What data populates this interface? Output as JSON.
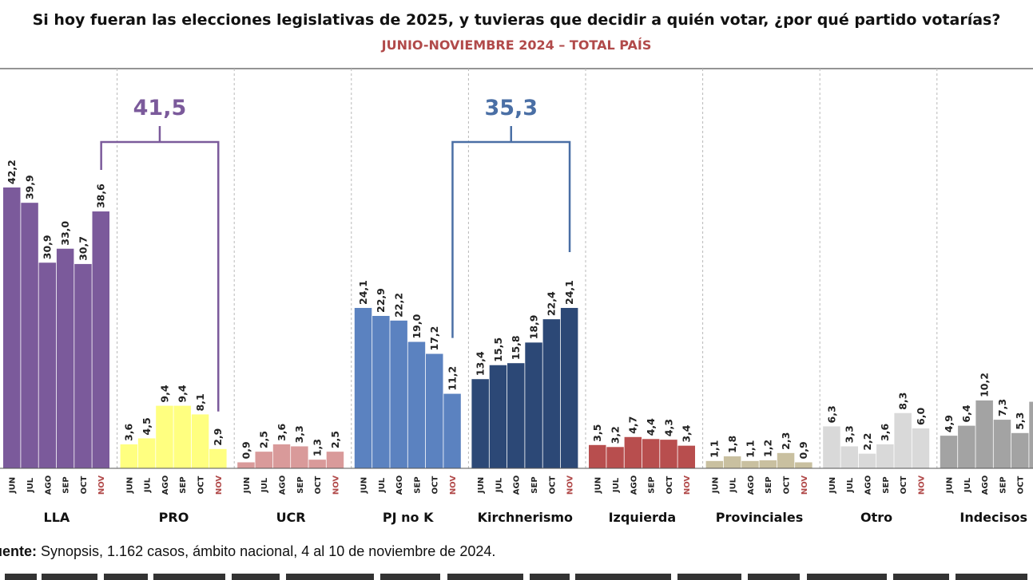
{
  "chart_data": {
    "type": "bar",
    "title": "Si hoy fueran las elecciones legislativas de 2025, y tuvieras que decidir a quién votar, ¿por qué partido votarías?",
    "subtitle": "JUNIO-NOVIEMBRE 2024 – TOTAL PAÍS",
    "months": [
      "JUN",
      "JUL",
      "AGO",
      "SEP",
      "OCT",
      "NOV"
    ],
    "ylim": [
      0,
      45
    ],
    "groups": [
      {
        "name": "LLA",
        "color": "#7b5a9b",
        "values": [
          42.2,
          39.9,
          30.9,
          33.0,
          30.7,
          38.6
        ],
        "labels": [
          "42,2",
          "39,9",
          "30,9",
          "33,0",
          "30,7",
          "38,6"
        ]
      },
      {
        "name": "PRO",
        "color": "#ffff80",
        "values": [
          3.6,
          4.5,
          9.4,
          9.4,
          8.1,
          2.9
        ],
        "labels": [
          "3,6",
          "4,5",
          "9,4",
          "9,4",
          "8,1",
          "2,9"
        ]
      },
      {
        "name": "UCR",
        "color": "#d99a9a",
        "values": [
          0.9,
          2.5,
          3.6,
          3.3,
          1.3,
          2.5
        ],
        "labels": [
          "0,9",
          "2,5",
          "3,6",
          "3,3",
          "1,3",
          "2,5"
        ]
      },
      {
        "name": "PJ no K",
        "color": "#5b82c0",
        "values": [
          24.1,
          22.9,
          22.2,
          19.0,
          17.2,
          11.2
        ],
        "labels": [
          "24,1",
          "22,9",
          "22,2",
          "19,0",
          "17,2",
          "11,2"
        ]
      },
      {
        "name": "Kirchnerismo",
        "color": "#2c4876",
        "values": [
          13.4,
          15.5,
          15.8,
          18.9,
          22.4,
          24.1
        ],
        "labels": [
          "13,4",
          "15,5",
          "15,8",
          "18,9",
          "22,4",
          "24,1"
        ]
      },
      {
        "name": "Izquierda",
        "color": "#b84e4e",
        "values": [
          3.5,
          3.2,
          4.7,
          4.4,
          4.3,
          3.4
        ],
        "labels": [
          "3,5",
          "3,2",
          "4,7",
          "4,4",
          "4,3",
          "3,4"
        ]
      },
      {
        "name": "Provinciales",
        "color": "#c9c0a0",
        "values": [
          1.1,
          1.8,
          1.1,
          1.2,
          2.3,
          0.9
        ],
        "labels": [
          "1,1",
          "1,8",
          "1,1",
          "1,2",
          "2,3",
          "0,9"
        ]
      },
      {
        "name": "Otro",
        "color": "#d9d9d9",
        "values": [
          6.3,
          3.3,
          2.2,
          3.6,
          8.3,
          6.0
        ],
        "labels": [
          "6,3",
          "3,3",
          "2,2",
          "3,6",
          "8,3",
          "6,0"
        ]
      },
      {
        "name": "Indecisos",
        "color": "#a3a3a3",
        "values": [
          4.9,
          6.4,
          10.2,
          7.3,
          5.3,
          10.0
        ],
        "labels": [
          "4,9",
          "6,4",
          "10,2",
          "7,3",
          "5,3",
          ""
        ]
      }
    ],
    "annotations": [
      {
        "label": "41,5",
        "color": "#7b5a9b",
        "from_group": "LLA",
        "to_group": "PRO"
      },
      {
        "label": "35,3",
        "color": "#4a6fa5",
        "from_group": "PJ no K",
        "to_group": "Kirchnerismo"
      }
    ]
  },
  "source": {
    "prefix": "uente:",
    "text": " Synopsis, 1.162 casos, ámbito nacional, 4 al 10 de noviembre de 2024."
  }
}
